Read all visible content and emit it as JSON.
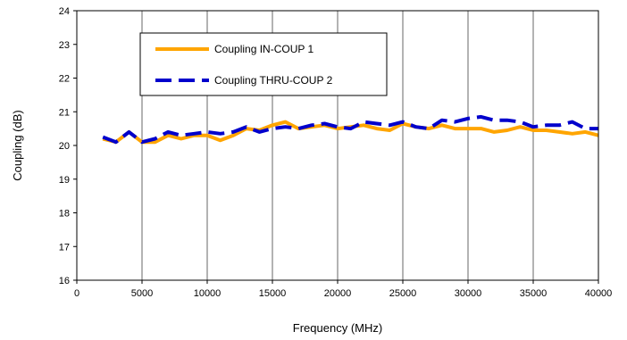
{
  "chart_data": {
    "type": "line",
    "title": "",
    "xlabel": "Frequency (MHz)",
    "ylabel": "Coupling (dB)",
    "xlim": [
      0,
      40000
    ],
    "ylim": [
      16,
      24
    ],
    "x_ticks": [
      0,
      5000,
      10000,
      15000,
      20000,
      25000,
      30000,
      35000,
      40000
    ],
    "y_ticks": [
      16,
      17,
      18,
      19,
      20,
      21,
      22,
      23,
      24
    ],
    "grid": "vertical",
    "legend_position": "top-left",
    "series": [
      {
        "name": "Coupling IN-COUP 1",
        "color": "#FFA500",
        "style": "solid",
        "x": [
          2000,
          3000,
          4000,
          5000,
          6000,
          7000,
          8000,
          9000,
          10000,
          11000,
          12000,
          13000,
          14000,
          15000,
          16000,
          17000,
          18000,
          19000,
          20000,
          21000,
          22000,
          23000,
          24000,
          25000,
          26000,
          27000,
          28000,
          29000,
          30000,
          31000,
          32000,
          33000,
          34000,
          35000,
          36000,
          37000,
          38000,
          39000,
          40000
        ],
        "y": [
          20.2,
          20.1,
          20.4,
          20.1,
          20.1,
          20.3,
          20.2,
          20.3,
          20.3,
          20.15,
          20.3,
          20.5,
          20.45,
          20.6,
          20.7,
          20.5,
          20.55,
          20.6,
          20.5,
          20.55,
          20.6,
          20.5,
          20.45,
          20.65,
          20.55,
          20.5,
          20.6,
          20.5,
          20.5,
          20.5,
          20.4,
          20.45,
          20.55,
          20.45,
          20.45,
          20.4,
          20.35,
          20.4,
          20.3
        ]
      },
      {
        "name": "Coupling THRU-COUP 2",
        "color": "#0000CC",
        "style": "dashed",
        "x": [
          2000,
          3000,
          4000,
          5000,
          6000,
          7000,
          8000,
          9000,
          10000,
          11000,
          12000,
          13000,
          14000,
          15000,
          16000,
          17000,
          18000,
          19000,
          20000,
          21000,
          22000,
          23000,
          24000,
          25000,
          26000,
          27000,
          28000,
          29000,
          30000,
          31000,
          32000,
          33000,
          34000,
          35000,
          36000,
          37000,
          38000,
          39000,
          40000
        ],
        "y": [
          20.25,
          20.1,
          20.4,
          20.1,
          20.2,
          20.4,
          20.3,
          20.35,
          20.4,
          20.35,
          20.4,
          20.55,
          20.4,
          20.5,
          20.55,
          20.5,
          20.6,
          20.65,
          20.55,
          20.5,
          20.7,
          20.65,
          20.6,
          20.7,
          20.55,
          20.5,
          20.75,
          20.7,
          20.8,
          20.85,
          20.75,
          20.75,
          20.7,
          20.55,
          20.6,
          20.6,
          20.7,
          20.5,
          20.5
        ]
      }
    ]
  }
}
